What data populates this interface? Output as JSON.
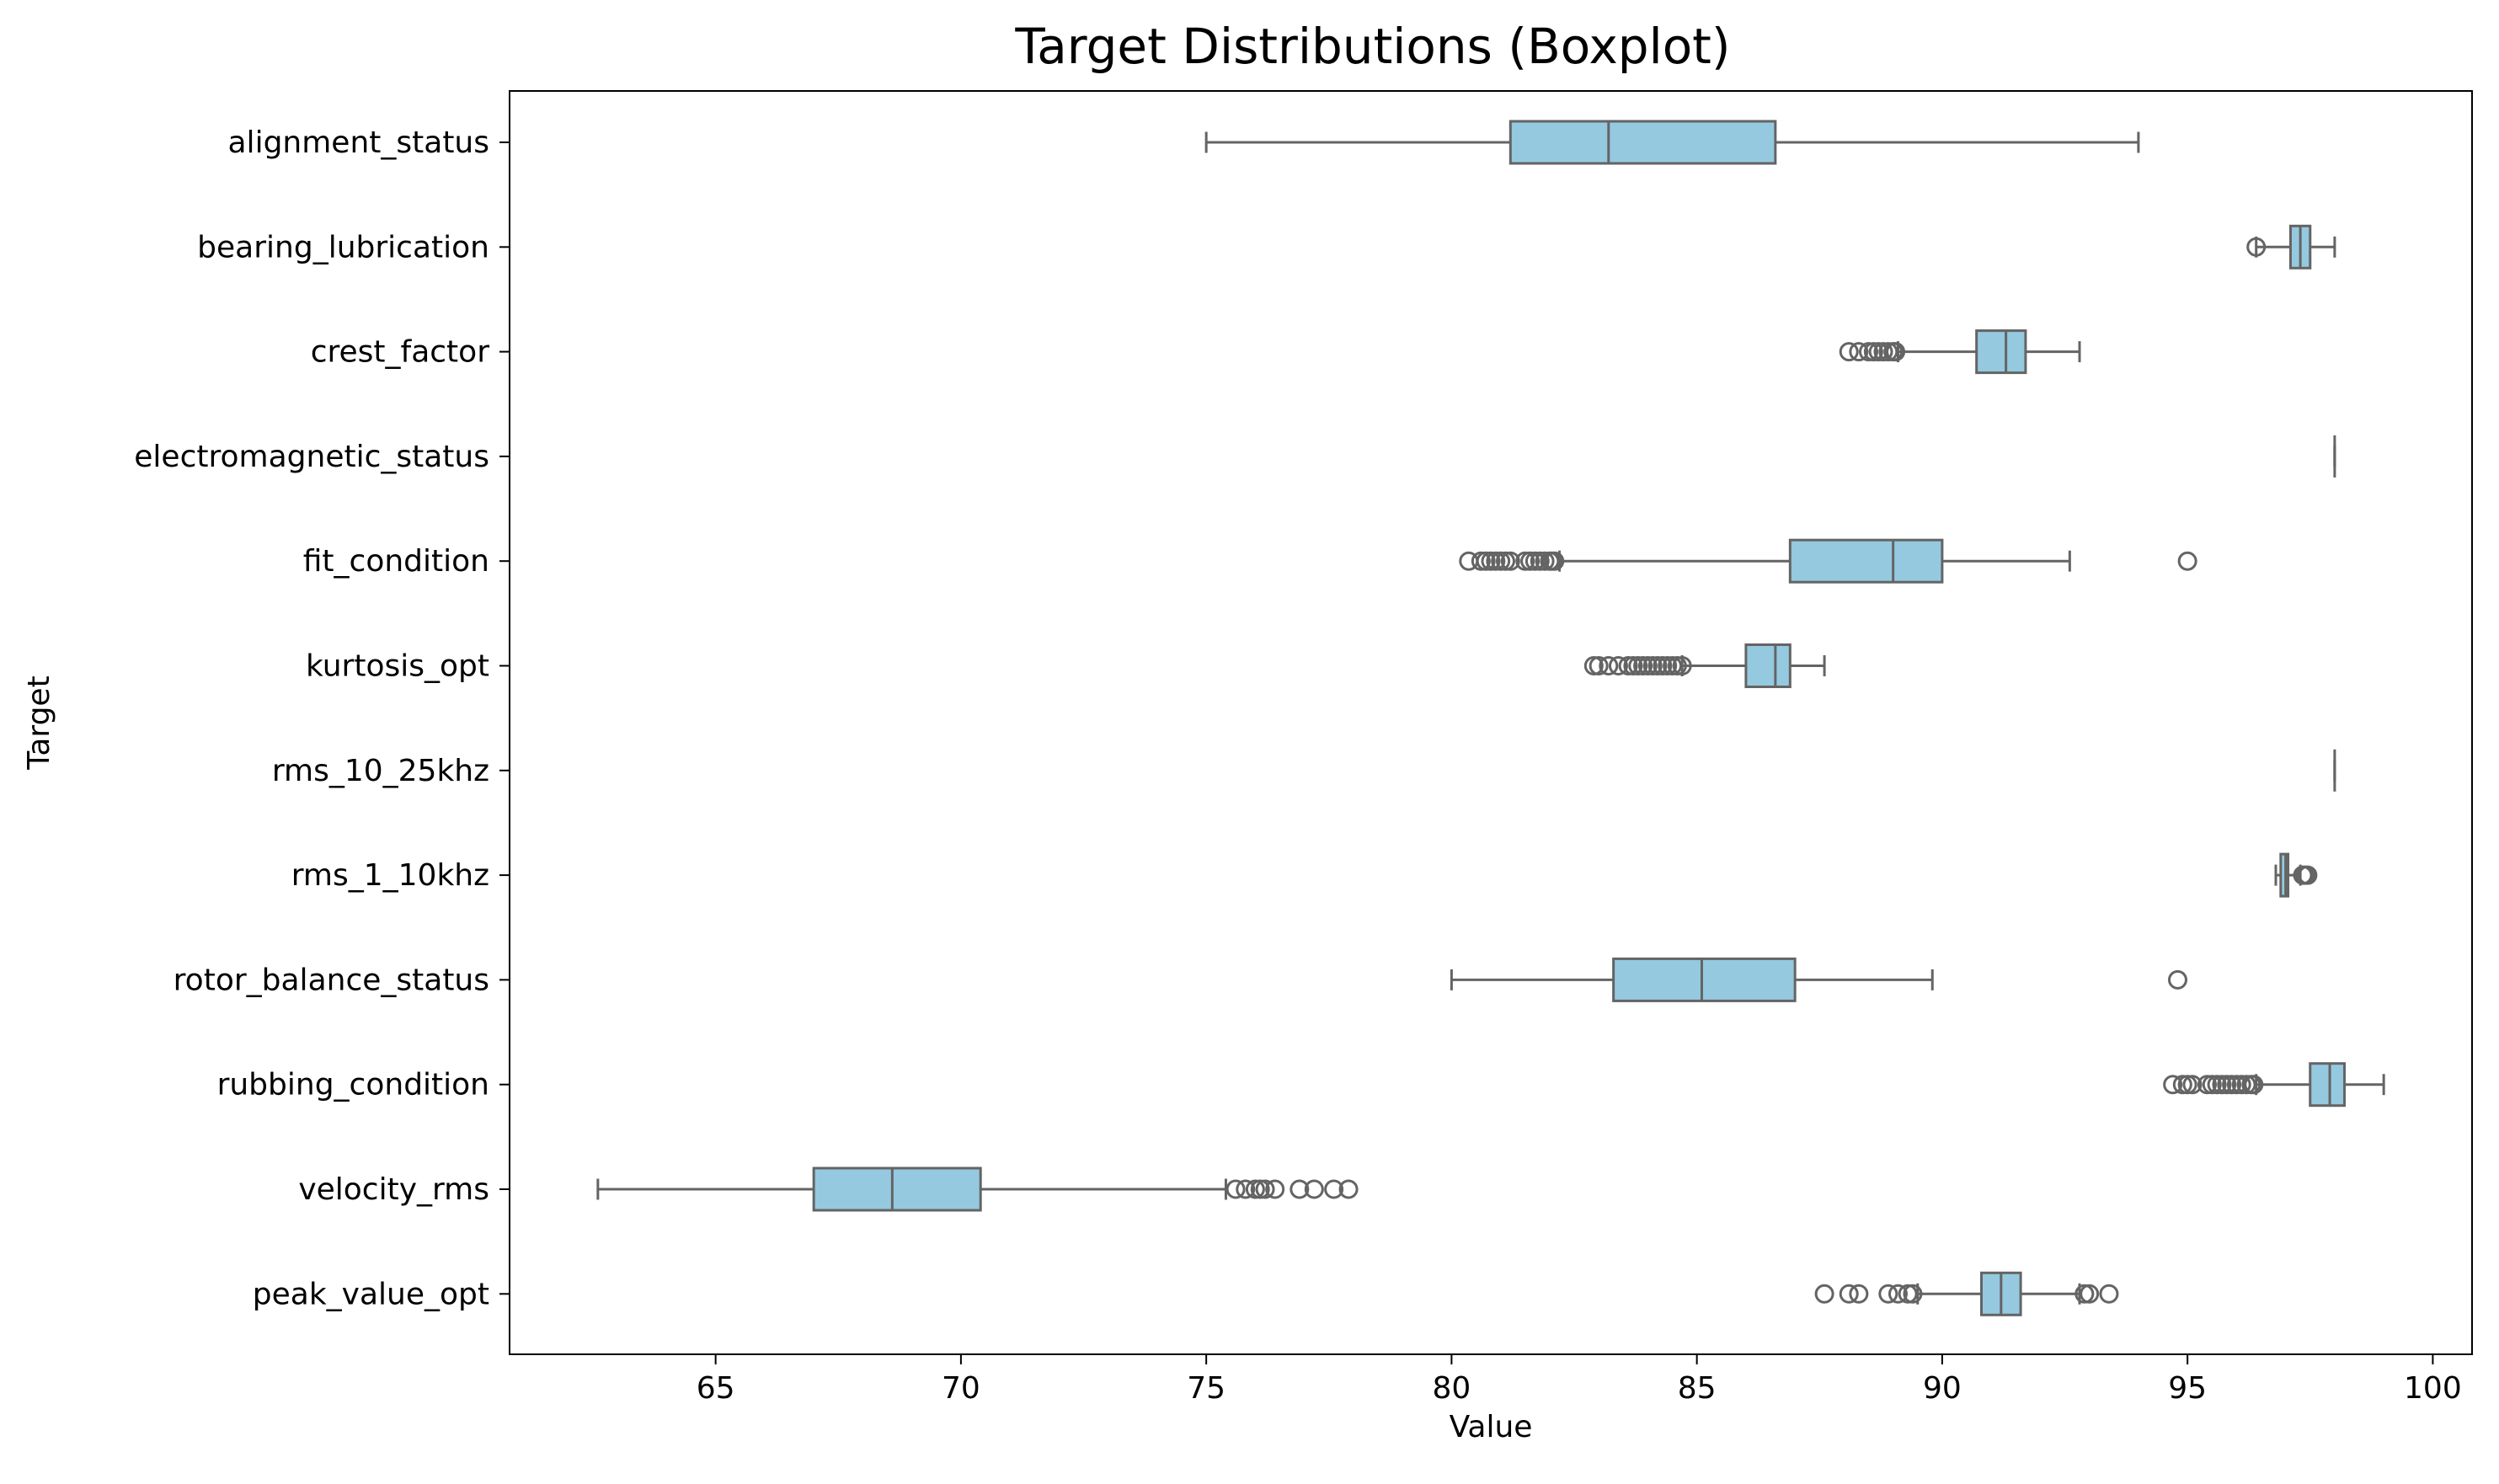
{
  "chart_data": {
    "type": "boxplot",
    "title": "Target Distributions (Boxplot)",
    "xlabel": "Value",
    "ylabel": "Target",
    "xlim": [
      60.8,
      100.8
    ],
    "xticks": [
      65,
      70,
      75,
      80,
      85,
      90,
      95,
      100
    ],
    "orientation": "horizontal",
    "grid": false,
    "box_color": "#95c9e0",
    "line_color": "#646464",
    "categories": [
      "alignment_status",
      "bearing_lubrication",
      "crest_factor",
      "electromagnetic_status",
      "fit_condition",
      "kurtosis_opt",
      "rms_10_25khz",
      "rms_1_10khz",
      "rotor_balance_status",
      "rubbing_condition",
      "velocity_rms",
      "peak_value_opt"
    ],
    "boxes": [
      {
        "name": "alignment_status",
        "whislo": 75.0,
        "q1": 81.2,
        "med": 83.2,
        "q3": 86.6,
        "whishi": 94.0,
        "fliers": []
      },
      {
        "name": "bearing_lubrication",
        "whislo": 96.4,
        "q1": 97.1,
        "med": 97.3,
        "q3": 97.5,
        "whishi": 98.0,
        "fliers": [
          96.4
        ]
      },
      {
        "name": "crest_factor",
        "whislo": 89.1,
        "q1": 90.7,
        "med": 91.3,
        "q3": 91.7,
        "whishi": 92.8,
        "fliers": [
          88.1,
          88.3,
          88.5,
          88.6,
          88.7,
          88.8,
          88.9,
          89.0,
          89.05
        ]
      },
      {
        "name": "electromagnetic_status",
        "whislo": 98.0,
        "q1": 98.0,
        "med": 98.0,
        "q3": 98.0,
        "whishi": 98.0,
        "fliers": []
      },
      {
        "name": "fit_condition",
        "whislo": 82.2,
        "q1": 86.9,
        "med": 89.0,
        "q3": 90.0,
        "whishi": 92.6,
        "fliers": [
          80.35,
          80.6,
          80.7,
          80.8,
          80.9,
          81.0,
          81.1,
          81.2,
          81.5,
          81.6,
          81.7,
          81.8,
          81.9,
          82.0,
          82.05,
          82.1,
          95.0
        ]
      },
      {
        "name": "kurtosis_opt",
        "whislo": 84.7,
        "q1": 86.0,
        "med": 86.6,
        "q3": 86.9,
        "whishi": 87.6,
        "fliers": [
          82.9,
          83.0,
          83.2,
          83.4,
          83.6,
          83.7,
          83.8,
          83.9,
          84.0,
          84.1,
          84.2,
          84.3,
          84.4,
          84.5,
          84.6,
          84.7
        ]
      },
      {
        "name": "rms_10_25khz",
        "whislo": 98.0,
        "q1": 98.0,
        "med": 98.0,
        "q3": 98.0,
        "whishi": 98.0,
        "fliers": []
      },
      {
        "name": "rms_1_10khz",
        "whislo": 96.8,
        "q1": 96.9,
        "med": 97.0,
        "q3": 97.05,
        "whishi": 97.3,
        "fliers": [
          97.35,
          97.4,
          97.45
        ]
      },
      {
        "name": "rotor_balance_status",
        "whislo": 80.0,
        "q1": 83.3,
        "med": 85.1,
        "q3": 87.0,
        "whishi": 89.8,
        "fliers": [
          94.8
        ]
      },
      {
        "name": "rubbing_condition",
        "whislo": 96.4,
        "q1": 97.5,
        "med": 97.9,
        "q3": 98.2,
        "whishi": 99.0,
        "fliers": [
          94.7,
          94.9,
          95.0,
          95.1,
          95.4,
          95.5,
          95.6,
          95.7,
          95.8,
          95.9,
          96.0,
          96.1,
          96.2,
          96.3,
          96.35
        ]
      },
      {
        "name": "velocity_rms",
        "whislo": 62.6,
        "q1": 67.0,
        "med": 68.6,
        "q3": 70.4,
        "whishi": 75.4,
        "fliers": [
          75.6,
          75.8,
          76.0,
          76.1,
          76.2,
          76.4,
          76.9,
          77.2,
          77.6,
          77.9
        ]
      },
      {
        "name": "peak_value_opt",
        "whislo": 89.5,
        "q1": 90.8,
        "med": 91.2,
        "q3": 91.6,
        "whishi": 92.8,
        "fliers": [
          87.6,
          88.1,
          88.3,
          88.9,
          89.1,
          89.3,
          89.4,
          92.9,
          93.0,
          93.4
        ]
      }
    ]
  }
}
